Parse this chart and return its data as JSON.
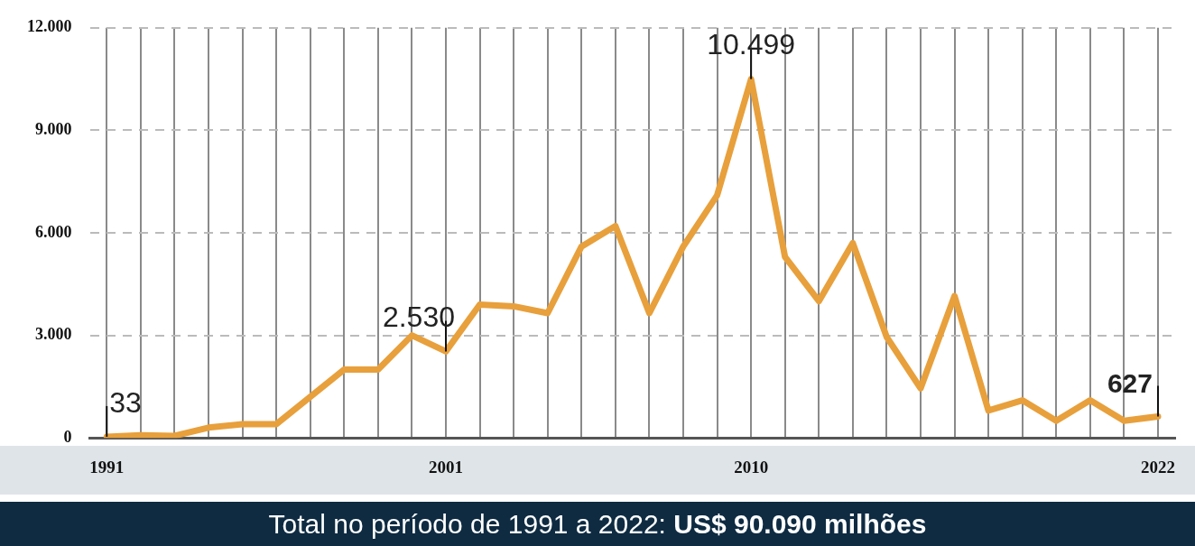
{
  "chart_data": {
    "type": "line",
    "categories": [
      "1991",
      null,
      null,
      null,
      null,
      null,
      null,
      null,
      null,
      null,
      "2001",
      null,
      null,
      null,
      null,
      null,
      null,
      null,
      null,
      "2010",
      null,
      null,
      null,
      null,
      null,
      null,
      null,
      null,
      null,
      null,
      null,
      "2022"
    ],
    "series": [
      {
        "color": "#e8a03c",
        "values": [
          33,
          80,
          60,
          300,
          400,
          400,
          1200,
          2000,
          2000,
          3000,
          2530,
          3900,
          3850,
          3650,
          5600,
          6200,
          3650,
          5600,
          7100,
          10499,
          5300,
          4000,
          5700,
          2950,
          1450,
          4150,
          800,
          1100,
          500,
          1100,
          500,
          627
        ],
        "value_labels": [
          "33",
          null,
          null,
          null,
          null,
          null,
          null,
          null,
          null,
          null,
          "2.530",
          null,
          null,
          null,
          null,
          null,
          null,
          null,
          null,
          "10.499",
          null,
          null,
          null,
          null,
          null,
          null,
          null,
          null,
          null,
          null,
          null,
          "627"
        ]
      }
    ],
    "ylim": [
      0,
      12000
    ],
    "yticks": [
      {
        "value": 0,
        "label": "0"
      },
      {
        "value": 3000,
        "label": "3.000"
      },
      {
        "value": 6000,
        "label": "6.000"
      },
      {
        "value": 9000,
        "label": "9.000"
      },
      {
        "value": 12000,
        "label": "12.000"
      }
    ],
    "grid": true,
    "marker": "none",
    "line_style": "solid",
    "legend": false,
    "annotations": [
      "Total no período de 1991 a 2022: US$ 90.090 milhões"
    ]
  }
}
